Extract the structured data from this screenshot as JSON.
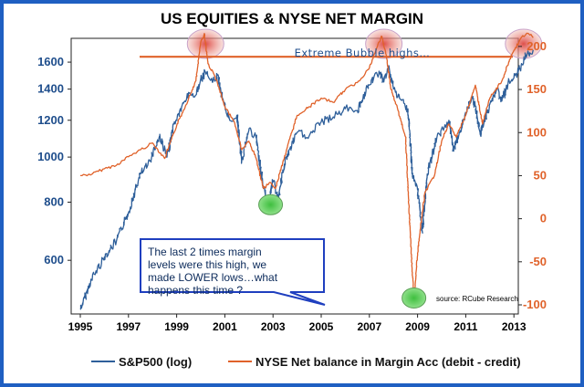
{
  "chart_data": {
    "type": "line",
    "title": "US EQUITIES & NYSE NET MARGIN",
    "x_ticks": [
      "1995",
      "1997",
      "1999",
      "2001",
      "2003",
      "2005",
      "2007",
      "2009",
      "2011",
      "2013"
    ],
    "y_left": {
      "scale": "log",
      "range": [
        460,
        1800
      ],
      "ticks": [
        600,
        800,
        1000,
        1200,
        1400,
        1600
      ]
    },
    "y_right": {
      "range": [
        -100,
        220
      ],
      "ticks": [
        -100,
        -50,
        0,
        50,
        100,
        150,
        200
      ]
    },
    "series": [
      {
        "name": "S&P500 (log)",
        "axis": "left",
        "color": "#2e5f9a",
        "points": [
          [
            1995.0,
            470
          ],
          [
            1995.5,
            550
          ],
          [
            1996.0,
            610
          ],
          [
            1996.5,
            660
          ],
          [
            1997.0,
            760
          ],
          [
            1997.5,
            920
          ],
          [
            1997.8,
            960
          ],
          [
            1998.3,
            1110
          ],
          [
            1998.6,
            1000
          ],
          [
            1998.9,
            1180
          ],
          [
            1999.5,
            1370
          ],
          [
            1999.8,
            1360
          ],
          [
            2000.0,
            1460
          ],
          [
            2000.2,
            1520
          ],
          [
            2000.5,
            1450
          ],
          [
            2000.7,
            1500
          ],
          [
            2000.9,
            1330
          ],
          [
            2001.2,
            1200
          ],
          [
            2001.5,
            1230
          ],
          [
            2001.7,
            980
          ],
          [
            2002.0,
            1150
          ],
          [
            2002.3,
            1100
          ],
          [
            2002.6,
            860
          ],
          [
            2002.8,
            800
          ],
          [
            2003.0,
            890
          ],
          [
            2003.2,
            810
          ],
          [
            2003.5,
            980
          ],
          [
            2004.0,
            1130
          ],
          [
            2004.5,
            1110
          ],
          [
            2005.0,
            1190
          ],
          [
            2005.5,
            1220
          ],
          [
            2006.0,
            1270
          ],
          [
            2006.5,
            1260
          ],
          [
            2007.0,
            1430
          ],
          [
            2007.4,
            1530
          ],
          [
            2007.6,
            1450
          ],
          [
            2007.8,
            1560
          ],
          [
            2008.0,
            1400
          ],
          [
            2008.3,
            1330
          ],
          [
            2008.6,
            1270
          ],
          [
            2008.8,
            900
          ],
          [
            2009.0,
            850
          ],
          [
            2009.2,
            690
          ],
          [
            2009.4,
            920
          ],
          [
            2009.8,
            1100
          ],
          [
            2010.3,
            1200
          ],
          [
            2010.5,
            1030
          ],
          [
            2010.9,
            1200
          ],
          [
            2011.3,
            1350
          ],
          [
            2011.6,
            1120
          ],
          [
            2012.0,
            1300
          ],
          [
            2012.3,
            1400
          ],
          [
            2012.5,
            1320
          ],
          [
            2012.8,
            1460
          ],
          [
            2013.0,
            1480
          ],
          [
            2013.3,
            1570
          ],
          [
            2013.5,
            1650
          ],
          [
            2013.8,
            1700
          ]
        ]
      },
      {
        "name": "NYSE Net balance in Margin Acc (debit - credit)",
        "axis": "right",
        "color": "#e0622a",
        "points": [
          [
            1995.0,
            50
          ],
          [
            1995.5,
            52
          ],
          [
            1996.0,
            58
          ],
          [
            1996.5,
            62
          ],
          [
            1997.0,
            72
          ],
          [
            1997.5,
            80
          ],
          [
            1998.0,
            88
          ],
          [
            1998.5,
            70
          ],
          [
            1999.0,
            108
          ],
          [
            1999.5,
            140
          ],
          [
            1999.8,
            160
          ],
          [
            2000.0,
            205
          ],
          [
            2000.15,
            215
          ],
          [
            2000.3,
            180
          ],
          [
            2000.6,
            165
          ],
          [
            2001.0,
            130
          ],
          [
            2001.4,
            112
          ],
          [
            2001.7,
            80
          ],
          [
            2002.0,
            90
          ],
          [
            2002.3,
            70
          ],
          [
            2002.6,
            35
          ],
          [
            2002.9,
            42
          ],
          [
            2003.1,
            35
          ],
          [
            2003.4,
            65
          ],
          [
            2004.0,
            120
          ],
          [
            2004.5,
            130
          ],
          [
            2005.0,
            140
          ],
          [
            2005.5,
            135
          ],
          [
            2006.0,
            150
          ],
          [
            2006.5,
            158
          ],
          [
            2007.0,
            175
          ],
          [
            2007.3,
            198
          ],
          [
            2007.5,
            212
          ],
          [
            2007.7,
            190
          ],
          [
            2007.9,
            150
          ],
          [
            2008.2,
            125
          ],
          [
            2008.5,
            95
          ],
          [
            2008.7,
            -20
          ],
          [
            2008.85,
            -95
          ],
          [
            2009.0,
            -40
          ],
          [
            2009.3,
            30
          ],
          [
            2009.7,
            50
          ],
          [
            2010.0,
            90
          ],
          [
            2010.3,
            110
          ],
          [
            2010.6,
            95
          ],
          [
            2011.0,
            120
          ],
          [
            2011.4,
            155
          ],
          [
            2011.7,
            110
          ],
          [
            2012.0,
            140
          ],
          [
            2012.5,
            160
          ],
          [
            2012.9,
            190
          ],
          [
            2013.3,
            210
          ],
          [
            2013.6,
            215
          ],
          [
            2013.8,
            210
          ]
        ]
      }
    ],
    "reference_line": {
      "axis": "right",
      "value": 188,
      "color": "#e0622a"
    },
    "highlights": [
      {
        "kind": "bubble-high",
        "x": 2000.2,
        "y_right": 203
      },
      {
        "kind": "bubble-high",
        "x": 2007.6,
        "y_right": 203
      },
      {
        "kind": "bubble-high",
        "x": 2013.4,
        "y_right": 203
      },
      {
        "kind": "low",
        "x": 2002.9,
        "y_left": 790
      },
      {
        "kind": "low",
        "x": 2008.85,
        "y_right": -92
      }
    ],
    "annotations": {
      "bubble": "Extreme Bubble highs…",
      "callout_lines": [
        "The last 2 times margin",
        "levels were this high, we",
        "made LOWER lows…what",
        "happens this time ?"
      ],
      "source": "source: RCube Research"
    }
  }
}
